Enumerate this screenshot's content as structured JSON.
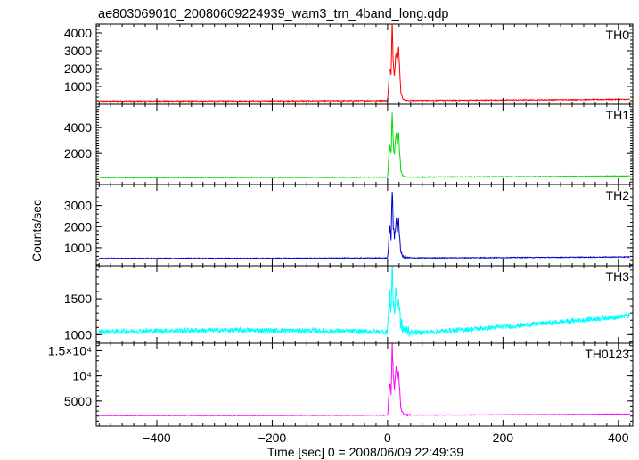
{
  "chart_data": {
    "type": "line",
    "title": "ae803069010_20080609224939_wam3_trn_4band_long.qdp",
    "ylabel": "Counts/sec",
    "xlabel": "Time [sec] 0 = 2008/06/09 22:49:39",
    "xlim": [
      -505,
      425
    ],
    "x_ticks": [
      {
        "value": -400,
        "label": "−400"
      },
      {
        "value": -200,
        "label": "−200"
      },
      {
        "value": 0,
        "label": "0"
      },
      {
        "value": 200,
        "label": "200"
      },
      {
        "value": 400,
        "label": "400"
      }
    ],
    "panels": [
      {
        "name": "TH0",
        "color": "#ff0000",
        "ylim": [
          0,
          4500
        ],
        "y_ticks": [
          {
            "value": 1000,
            "label": "1000"
          },
          {
            "value": 2000,
            "label": "2000"
          },
          {
            "value": 3000,
            "label": "3000"
          },
          {
            "value": 4000,
            "label": "4000"
          }
        ],
        "baseline_start": 180,
        "baseline_end": 280,
        "noise": 25,
        "burst": [
          [
            0,
            180
          ],
          [
            2,
            1300
          ],
          [
            4,
            2100
          ],
          [
            6,
            1600
          ],
          [
            8,
            4400
          ],
          [
            10,
            2300
          ],
          [
            12,
            1700
          ],
          [
            15,
            3200
          ],
          [
            17,
            2500
          ],
          [
            19,
            3100
          ],
          [
            21,
            2000
          ],
          [
            23,
            700
          ],
          [
            26,
            330
          ],
          [
            30,
            230
          ],
          [
            40,
            200
          ]
        ]
      },
      {
        "name": "TH1",
        "color": "#00dd00",
        "ylim": [
          -400,
          5800
        ],
        "y_ticks": [
          {
            "value": 2000,
            "label": "2000"
          },
          {
            "value": 4000,
            "label": "4000"
          }
        ],
        "baseline_start": 140,
        "baseline_end": 260,
        "noise": 30,
        "burst": [
          [
            0,
            140
          ],
          [
            2,
            1600
          ],
          [
            4,
            2800
          ],
          [
            6,
            1900
          ],
          [
            8,
            5000
          ],
          [
            10,
            2600
          ],
          [
            12,
            1900
          ],
          [
            15,
            3600
          ],
          [
            17,
            2800
          ],
          [
            19,
            3500
          ],
          [
            21,
            2100
          ],
          [
            23,
            700
          ],
          [
            26,
            320
          ],
          [
            30,
            200
          ],
          [
            40,
            160
          ]
        ]
      },
      {
        "name": "TH2",
        "color": "#0000cc",
        "ylim": [
          150,
          4000
        ],
        "y_ticks": [
          {
            "value": 1000,
            "label": "1000"
          },
          {
            "value": 2000,
            "label": "2000"
          },
          {
            "value": 3000,
            "label": "3000"
          }
        ],
        "baseline_start": 500,
        "baseline_end": 570,
        "noise": 18,
        "burst": [
          [
            0,
            500
          ],
          [
            2,
            1200
          ],
          [
            4,
            2000
          ],
          [
            6,
            1400
          ],
          [
            8,
            3900
          ],
          [
            10,
            1900
          ],
          [
            12,
            1500
          ],
          [
            15,
            2400
          ],
          [
            17,
            1800
          ],
          [
            19,
            2300
          ],
          [
            21,
            1500
          ],
          [
            23,
            800
          ],
          [
            26,
            600
          ],
          [
            30,
            540
          ],
          [
            40,
            520
          ]
        ]
      },
      {
        "name": "TH3",
        "color": "#00ffff",
        "ylim": [
          880,
          1960
        ],
        "y_ticks": [
          {
            "value": 1000,
            "label": "1000"
          },
          {
            "value": 1500,
            "label": "1500"
          }
        ],
        "baseline_start": 1030,
        "baseline_end": 1270,
        "noise": 35,
        "burst": [
          [
            0,
            1080
          ],
          [
            2,
            1350
          ],
          [
            4,
            1500
          ],
          [
            6,
            1350
          ],
          [
            8,
            1960
          ],
          [
            10,
            1450
          ],
          [
            12,
            1300
          ],
          [
            15,
            1650
          ],
          [
            17,
            1400
          ],
          [
            19,
            1500
          ],
          [
            21,
            1280
          ],
          [
            23,
            1150
          ],
          [
            26,
            1080
          ],
          [
            30,
            1060
          ],
          [
            40,
            1060
          ]
        ]
      },
      {
        "name": "TH0123",
        "color": "#ff00ff",
        "ylim": [
          0,
          16500
        ],
        "y_ticks": [
          {
            "value": 5000,
            "label": "5000"
          },
          {
            "value": 10000,
            "label": "10⁴",
            "sup": true
          },
          {
            "value": 15000,
            "label": "1.5×10⁴",
            "sup": true
          }
        ],
        "baseline_start": 2100,
        "baseline_end": 2400,
        "noise": 60,
        "burst": [
          [
            0,
            2100
          ],
          [
            2,
            5500
          ],
          [
            4,
            9000
          ],
          [
            6,
            6500
          ],
          [
            8,
            16500
          ],
          [
            10,
            9200
          ],
          [
            12,
            7000
          ],
          [
            15,
            12000
          ],
          [
            17,
            9500
          ],
          [
            19,
            11000
          ],
          [
            21,
            7500
          ],
          [
            23,
            3500
          ],
          [
            26,
            2600
          ],
          [
            30,
            2300
          ],
          [
            40,
            2200
          ]
        ]
      }
    ]
  }
}
